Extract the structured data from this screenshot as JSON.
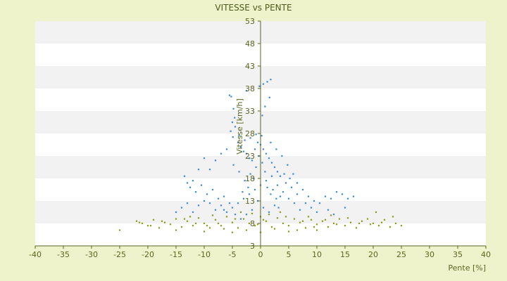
{
  "chart_data": {
    "type": "scatter",
    "title": "VITESSE vs PENTE",
    "xlabel": "Pente [%]",
    "ylabel": "Vitesse [km/h]",
    "xlim": [
      -40,
      40
    ],
    "ylim": [
      3,
      53
    ],
    "x_ticks": [
      "-40",
      "-35",
      "-30",
      "-25",
      "-20",
      "-15",
      "-10",
      "-5",
      "0",
      "5",
      "10",
      "15",
      "20",
      "25",
      "30",
      "35",
      "40"
    ],
    "y_ticks": [
      "3",
      "8",
      "13",
      "18",
      "23",
      "28",
      "33",
      "38",
      "43",
      "48",
      "53"
    ],
    "grid": "horizontal alternating bands",
    "legend": "none",
    "colors": {
      "blue": "#3a8ad6",
      "olive": "#8f9a16",
      "axis": "#5a6420",
      "band": "#f2f2f2",
      "plot_bg": "#ffffff",
      "page_bg": "#eef3cc"
    },
    "series": [
      {
        "color": "blue",
        "points": [
          [
            -5.5,
            36.5
          ],
          [
            -5.2,
            36.2
          ],
          [
            -4.8,
            33.5
          ],
          [
            -4.6,
            31.5
          ],
          [
            -5.0,
            30.5
          ],
          [
            -4.5,
            29.5
          ],
          [
            -5.3,
            28.5
          ],
          [
            -4.9,
            27.2
          ],
          [
            -4.0,
            26.0
          ],
          [
            -3.5,
            25.0
          ],
          [
            -3.0,
            24.0
          ],
          [
            -2.5,
            23.5
          ],
          [
            -2.0,
            22.5
          ],
          [
            -1.5,
            22.0
          ],
          [
            -1.0,
            24.5
          ],
          [
            -0.5,
            26.0
          ],
          [
            0.0,
            25.5
          ],
          [
            0.5,
            24.5
          ],
          [
            1.0,
            23.5
          ],
          [
            1.5,
            22.5
          ],
          [
            2.0,
            21.5
          ],
          [
            2.5,
            20.5
          ],
          [
            3.0,
            19.5
          ],
          [
            3.5,
            18.5
          ],
          [
            -2.5,
            37.5
          ],
          [
            -0.2,
            38.5
          ],
          [
            0.5,
            39.0
          ],
          [
            1.2,
            39.5
          ],
          [
            1.8,
            40.0
          ],
          [
            1.6,
            36.0
          ],
          [
            0.8,
            34.0
          ],
          [
            0.3,
            32.0
          ],
          [
            -3.8,
            27.5
          ],
          [
            -2.8,
            26.5
          ],
          [
            -1.8,
            27.0
          ],
          [
            -0.8,
            27.8
          ],
          [
            0.2,
            27.5
          ],
          [
            1.8,
            26.0
          ],
          [
            2.8,
            24.5
          ],
          [
            3.8,
            23.0
          ],
          [
            4.8,
            21.0
          ],
          [
            5.8,
            19.0
          ],
          [
            6.5,
            17.0
          ],
          [
            7.5,
            15.5
          ],
          [
            8.5,
            14.0
          ],
          [
            9.5,
            13.0
          ],
          [
            10.5,
            12.5
          ],
          [
            11.5,
            14.0
          ],
          [
            12.5,
            13.5
          ],
          [
            13.5,
            15.0
          ],
          [
            14.5,
            14.5
          ],
          [
            15.5,
            13.5
          ],
          [
            16.5,
            14.0
          ],
          [
            15.0,
            11.5
          ],
          [
            13.0,
            10.0
          ],
          [
            12.0,
            11.0
          ],
          [
            10.0,
            10.5
          ],
          [
            9.0,
            11.5
          ],
          [
            8.0,
            12.5
          ],
          [
            7.0,
            11.0
          ],
          [
            -6.0,
            24.5
          ],
          [
            -7.0,
            23.5
          ],
          [
            -8.0,
            22.0
          ],
          [
            -9.0,
            20.0
          ],
          [
            -10.0,
            22.5
          ],
          [
            -11.0,
            20.0
          ],
          [
            -12.0,
            17.5
          ],
          [
            -13.0,
            17.0
          ],
          [
            -13.5,
            18.5
          ],
          [
            -12.5,
            16.0
          ],
          [
            -11.5,
            15.0
          ],
          [
            -10.5,
            16.5
          ],
          [
            -9.5,
            14.5
          ],
          [
            -8.5,
            15.5
          ],
          [
            -7.5,
            13.5
          ],
          [
            -6.5,
            14.0
          ],
          [
            -14.0,
            11.5
          ],
          [
            -15.0,
            10.5
          ],
          [
            -13.0,
            12.5
          ],
          [
            -12.0,
            10.5
          ],
          [
            -11.0,
            12.0
          ],
          [
            -10.0,
            13.0
          ],
          [
            -9.0,
            12.5
          ],
          [
            -8.0,
            11.0
          ],
          [
            -7.0,
            12.0
          ],
          [
            -6.0,
            10.5
          ],
          [
            -5.0,
            11.5
          ],
          [
            -4.0,
            12.5
          ],
          [
            -3.0,
            13.5
          ],
          [
            -2.0,
            14.5
          ],
          [
            -1.0,
            15.5
          ],
          [
            0.0,
            16.5
          ],
          [
            1.0,
            17.5
          ],
          [
            2.0,
            18.5
          ],
          [
            3.0,
            16.5
          ],
          [
            4.0,
            15.0
          ],
          [
            5.0,
            13.5
          ],
          [
            6.0,
            12.5
          ],
          [
            6.5,
            14.5
          ],
          [
            5.5,
            16.0
          ],
          [
            4.5,
            17.0
          ],
          [
            3.5,
            14.0
          ],
          [
            2.5,
            12.0
          ],
          [
            1.5,
            10.5
          ],
          [
            0.5,
            11.5
          ],
          [
            -0.5,
            13.0
          ],
          [
            -1.5,
            11.0
          ],
          [
            -2.5,
            10.0
          ],
          [
            -3.5,
            9.0
          ],
          [
            -4.5,
            10.0
          ],
          [
            -5.5,
            12.5
          ],
          [
            -6.5,
            11.0
          ],
          [
            -0.8,
            20.5
          ],
          [
            0.8,
            19.5
          ],
          [
            -1.8,
            19.0
          ],
          [
            1.8,
            14.5
          ],
          [
            2.8,
            13.5
          ],
          [
            -2.8,
            17.5
          ],
          [
            -3.8,
            19.5
          ],
          [
            -4.8,
            21.0
          ],
          [
            4.2,
            19.0
          ],
          [
            5.2,
            18.0
          ],
          [
            -0.3,
            23.0
          ],
          [
            0.3,
            21.5
          ],
          [
            -1.2,
            18.0
          ],
          [
            1.2,
            16.0
          ],
          [
            2.2,
            15.5
          ],
          [
            -2.2,
            16.0
          ],
          [
            -3.2,
            15.0
          ],
          [
            3.2,
            11.5
          ]
        ]
      },
      {
        "color": "olive",
        "points": [
          [
            -25.0,
            6.5
          ],
          [
            -22.0,
            8.5
          ],
          [
            -21.0,
            8.0
          ],
          [
            -20.0,
            7.5
          ],
          [
            -19.0,
            8.8
          ],
          [
            -18.0,
            7.0
          ],
          [
            -17.0,
            8.2
          ],
          [
            -16.0,
            7.8
          ],
          [
            -15.0,
            9.0
          ],
          [
            -14.0,
            7.2
          ],
          [
            -13.0,
            8.5
          ],
          [
            -12.0,
            7.5
          ],
          [
            -11.0,
            9.2
          ],
          [
            -10.0,
            8.0
          ],
          [
            -9.0,
            7.0
          ],
          [
            -8.0,
            8.8
          ],
          [
            -7.0,
            7.5
          ],
          [
            -6.0,
            9.5
          ],
          [
            -5.0,
            8.2
          ],
          [
            -4.0,
            7.0
          ],
          [
            -3.0,
            9.0
          ],
          [
            -2.0,
            8.0
          ],
          [
            -1.0,
            7.5
          ],
          [
            0.0,
            9.5
          ],
          [
            1.0,
            8.5
          ],
          [
            2.0,
            7.2
          ],
          [
            3.0,
            9.2
          ],
          [
            4.0,
            8.0
          ],
          [
            5.0,
            7.5
          ],
          [
            6.0,
            9.0
          ],
          [
            7.0,
            8.2
          ],
          [
            8.0,
            7.0
          ],
          [
            9.0,
            8.8
          ],
          [
            10.0,
            7.8
          ],
          [
            11.0,
            8.5
          ],
          [
            12.0,
            7.2
          ],
          [
            13.0,
            8.0
          ],
          [
            14.0,
            9.0
          ],
          [
            15.0,
            7.5
          ],
          [
            16.0,
            8.2
          ],
          [
            17.0,
            7.0
          ],
          [
            18.0,
            8.5
          ],
          [
            19.0,
            9.0
          ],
          [
            20.0,
            8.0
          ],
          [
            21.0,
            7.5
          ],
          [
            22.0,
            8.8
          ],
          [
            23.0,
            7.2
          ],
          [
            24.0,
            8.0
          ],
          [
            25.0,
            7.5
          ],
          [
            20.5,
            10.5
          ],
          [
            23.5,
            9.5
          ],
          [
            -15.0,
            6.5
          ],
          [
            -10.0,
            6.2
          ],
          [
            -5.0,
            6.0
          ],
          [
            0.0,
            6.0
          ],
          [
            5.0,
            6.2
          ],
          [
            10.0,
            6.5
          ],
          [
            -3.5,
            10.5
          ],
          [
            -1.5,
            10.2
          ],
          [
            1.5,
            10.0
          ],
          [
            3.5,
            10.5
          ],
          [
            -6.5,
            6.8
          ],
          [
            6.5,
            6.5
          ],
          [
            -8.5,
            9.8
          ],
          [
            8.5,
            9.5
          ],
          [
            -12.5,
            9.5
          ],
          [
            12.5,
            9.8
          ],
          [
            -2.5,
            6.5
          ],
          [
            2.5,
            6.8
          ],
          [
            -7.5,
            8.0
          ],
          [
            7.5,
            8.5
          ],
          [
            -0.5,
            7.8
          ],
          [
            0.5,
            8.8
          ],
          [
            -4.5,
            9.0
          ],
          [
            4.5,
            9.5
          ],
          [
            -9.5,
            7.5
          ],
          [
            9.5,
            7.2
          ],
          [
            -11.5,
            8.0
          ],
          [
            11.5,
            8.8
          ],
          [
            -13.5,
            9.0
          ],
          [
            13.5,
            7.8
          ],
          [
            15.5,
            9.2
          ],
          [
            -17.5,
            8.5
          ],
          [
            17.5,
            8.0
          ],
          [
            -19.5,
            7.5
          ],
          [
            19.5,
            7.8
          ],
          [
            -21.5,
            8.2
          ],
          [
            21.5,
            8.2
          ]
        ]
      }
    ]
  }
}
